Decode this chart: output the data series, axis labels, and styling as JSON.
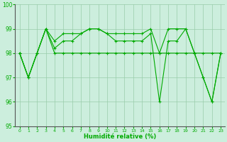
{
  "xlabel": "Humidité relative (%)",
  "background_color": "#cceedd",
  "line_color": "#00aa00",
  "grid_color": "#99ccaa",
  "tick_color": "#00aa00",
  "ylim": [
    95,
    100
  ],
  "xlim": [
    -0.5,
    23.5
  ],
  "yticks": [
    95,
    96,
    97,
    98,
    99,
    100
  ],
  "xticks": [
    0,
    1,
    2,
    3,
    4,
    5,
    6,
    7,
    8,
    9,
    10,
    11,
    12,
    13,
    14,
    15,
    16,
    17,
    18,
    19,
    20,
    21,
    22,
    23
  ],
  "series": [
    [
      98,
      97,
      98,
      99,
      98,
      98,
      98,
      98,
      98,
      98,
      98,
      98,
      98,
      98,
      98,
      98,
      98,
      98,
      98,
      98,
      98,
      98,
      98,
      98
    ],
    [
      98,
      97,
      98,
      99,
      98.5,
      98.8,
      98.8,
      98.8,
      99,
      99,
      98.8,
      98.8,
      98.8,
      98.8,
      98.8,
      99,
      98,
      99,
      99,
      99,
      98,
      97,
      96,
      98
    ],
    [
      98,
      97,
      98,
      99,
      98.2,
      98.5,
      98.5,
      98.8,
      99,
      99,
      98.8,
      98.5,
      98.5,
      98.5,
      98.5,
      98.8,
      96,
      98.5,
      98.5,
      99,
      98,
      97,
      96,
      98
    ]
  ]
}
